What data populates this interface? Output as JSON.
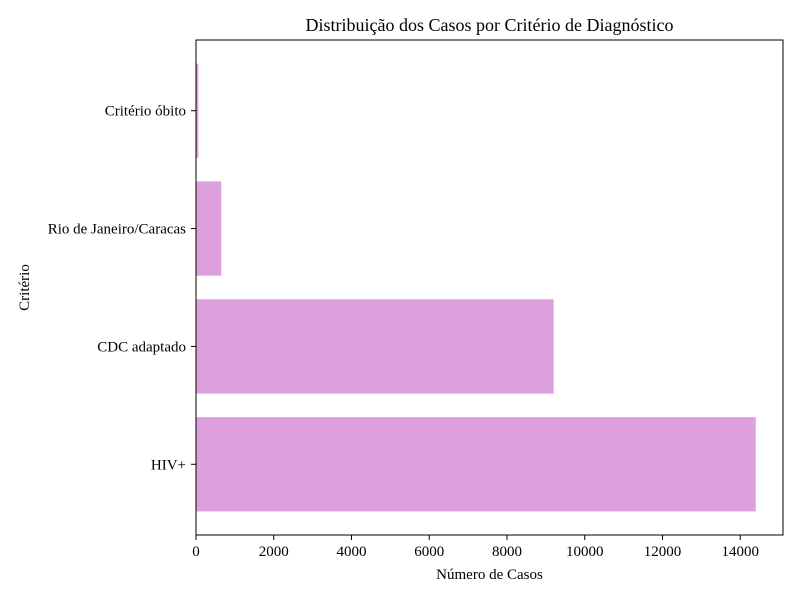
{
  "chart_data": {
    "type": "bar",
    "orientation": "horizontal",
    "title": "Distribuição dos Casos por Critério de Diagnóstico",
    "xlabel": "Número de Casos",
    "ylabel": "Critério",
    "categories": [
      "HIV+",
      "CDC adaptado",
      "Rio de Janeiro/Caracas",
      "Critério óbito"
    ],
    "values": [
      14400,
      9200,
      650,
      60
    ],
    "xlim": [
      0,
      15100
    ],
    "xticks": [
      0,
      2000,
      4000,
      6000,
      8000,
      10000,
      12000,
      14000
    ],
    "bar_color": "#dda0dd",
    "grid": false,
    "legend": "none"
  }
}
